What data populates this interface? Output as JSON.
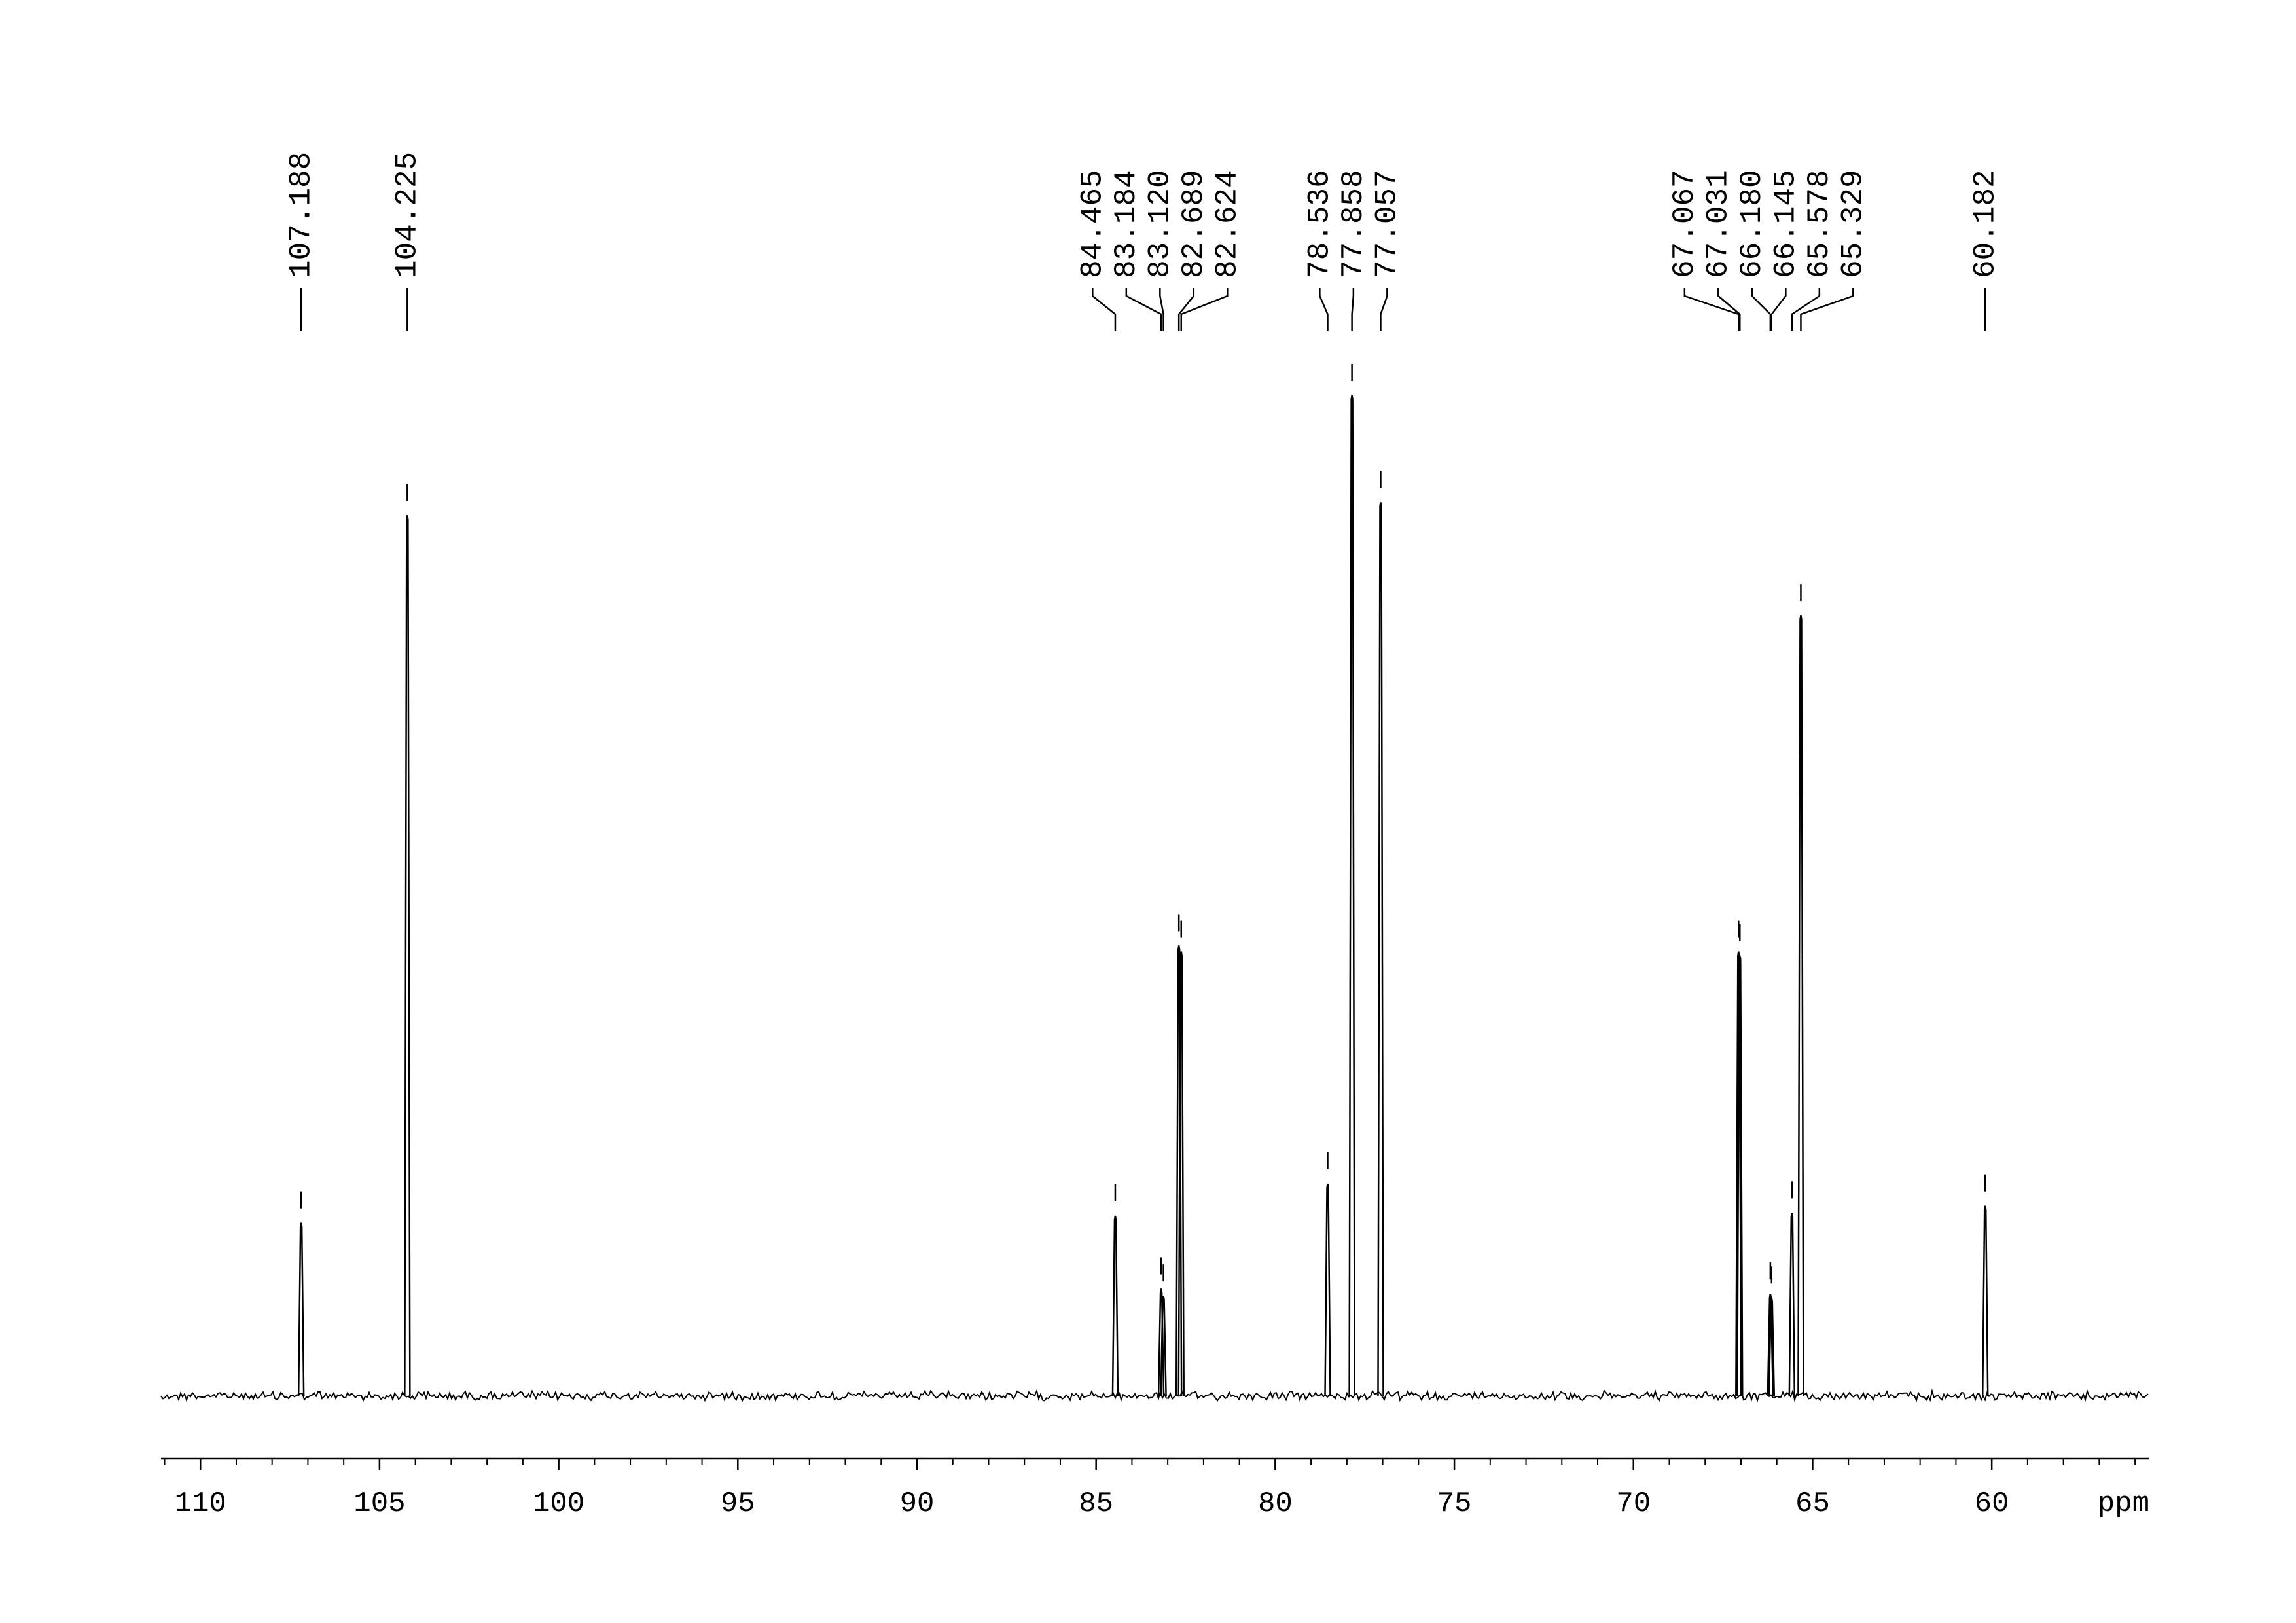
{
  "chart_data": {
    "type": "nmr",
    "x_label": "ppm",
    "xlim": [
      111.1,
      55.6
    ],
    "xticks": [
      110,
      105,
      100,
      95,
      90,
      85,
      80,
      75,
      70,
      65,
      60
    ],
    "ylim": [
      0,
      100
    ],
    "color": "#000000",
    "peaks": [
      {
        "ppm": 107.188,
        "label": "107.188",
        "height": 17.3
      },
      {
        "ppm": 104.225,
        "label": "104.225",
        "height": 88
      },
      {
        "ppm": 84.465,
        "label": "84.465",
        "height": 18
      },
      {
        "ppm": 83.184,
        "label": "83.184",
        "height": 10.7
      },
      {
        "ppm": 83.12,
        "label": "83.120",
        "height": 10
      },
      {
        "ppm": 82.689,
        "label": "82.689",
        "height": 45
      },
      {
        "ppm": 82.624,
        "label": "82.624",
        "height": 44.4
      },
      {
        "ppm": 78.536,
        "label": "78.536",
        "height": 21.2
      },
      {
        "ppm": 77.858,
        "label": "77.858",
        "height": 100
      },
      {
        "ppm": 77.057,
        "label": "77.057",
        "height": 89.3
      },
      {
        "ppm": 67.067,
        "label": "67.067",
        "height": 44.4
      },
      {
        "ppm": 67.031,
        "label": "67.031",
        "height": 44
      },
      {
        "ppm": 66.18,
        "label": "66.180",
        "height": 10.2
      },
      {
        "ppm": 66.145,
        "label": "66.145",
        "height": 9.8
      },
      {
        "ppm": 65.578,
        "label": "65.578",
        "height": 18.3
      },
      {
        "ppm": 65.329,
        "label": "65.329",
        "height": 78
      },
      {
        "ppm": 60.182,
        "label": "60.182",
        "height": 19
      }
    ]
  }
}
